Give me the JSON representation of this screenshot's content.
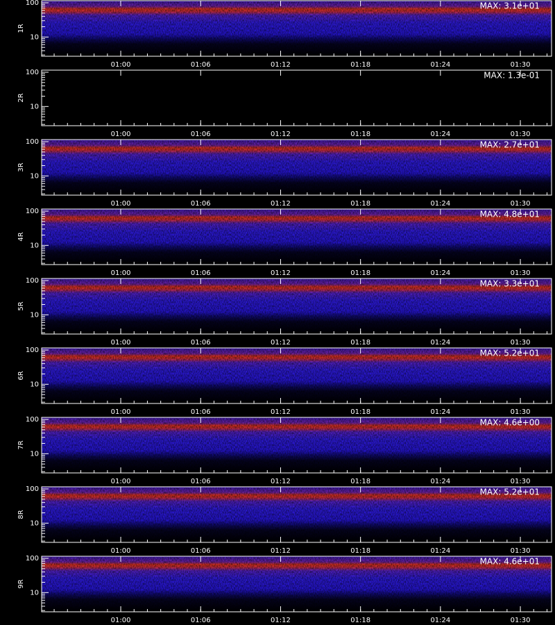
{
  "xlim": [
    54.06,
    92.34
  ],
  "xticks": [
    {
      "value": 60,
      "label": "01:00"
    },
    {
      "value": 66,
      "label": "01:06"
    },
    {
      "value": 72,
      "label": "01:12"
    },
    {
      "value": 78,
      "label": "01:18"
    },
    {
      "value": 84,
      "label": "01:24"
    },
    {
      "value": 90,
      "label": "01:30"
    }
  ],
  "ylim": [
    2.75,
    115
  ],
  "yticks": [
    10,
    100
  ],
  "log_y": true,
  "panels": [
    {
      "label": "1R",
      "max_label": "MAX: 3.1e+01"
    },
    {
      "label": "2R",
      "max_label": "MAX: 1.3e-01"
    },
    {
      "label": "3R",
      "max_label": "MAX: 2.7e+01"
    },
    {
      "label": "4R",
      "max_label": "MAX: 4.8e+01"
    },
    {
      "label": "5R",
      "max_label": "MAX: 3.3e+01"
    },
    {
      "label": "6R",
      "max_label": "MAX: 5.2e+01"
    },
    {
      "label": "7R",
      "max_label": "MAX: 4.6e+00"
    },
    {
      "label": "8R",
      "max_label": "MAX: 5.2e+01"
    },
    {
      "label": "9R",
      "max_label": "MAX: 4.6e+01"
    }
  ]
}
